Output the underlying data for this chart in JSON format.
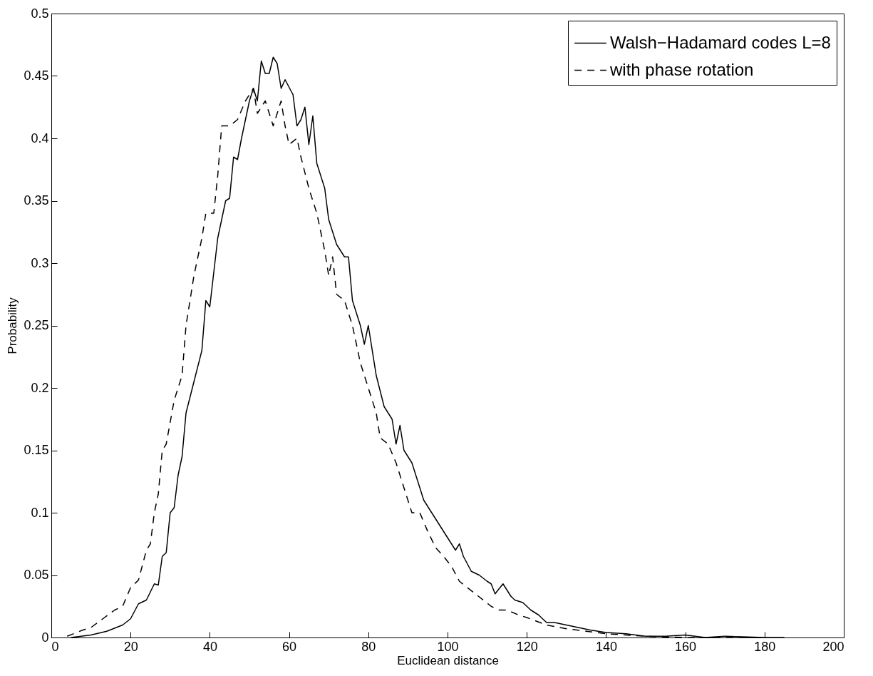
{
  "chart_data": {
    "type": "line",
    "xlabel": "Euclidean distance",
    "ylabel": "Probability",
    "xlim": [
      0,
      200
    ],
    "ylim": [
      0,
      0.5
    ],
    "xticks": [
      0,
      20,
      40,
      60,
      80,
      100,
      120,
      140,
      160,
      180,
      200
    ],
    "yticks": [
      0,
      0.05,
      0.1,
      0.15,
      0.2,
      0.25,
      0.3,
      0.35,
      0.4,
      0.45,
      0.5
    ],
    "legend": "top right",
    "series": [
      {
        "name": "Walsh−Hadamard codes L=8",
        "color": "#000000",
        "line_style": "solid",
        "x": [
          5,
          10,
          14,
          18,
          20,
          22,
          24,
          26,
          27,
          28,
          29,
          30,
          31,
          32,
          33,
          34,
          36,
          38,
          39,
          40,
          42,
          44,
          45,
          46,
          47,
          48,
          50,
          51,
          52,
          53,
          54,
          55,
          56,
          57,
          58,
          59,
          61,
          62,
          63,
          64,
          65,
          66,
          67,
          69,
          70,
          71,
          72,
          74,
          75,
          76,
          78,
          79,
          80,
          82,
          84,
          86,
          87,
          88,
          89,
          91,
          92,
          94,
          96,
          98,
          99,
          100,
          101,
          102,
          103,
          104,
          106,
          108,
          110,
          111,
          112,
          114,
          116,
          117,
          119,
          121,
          123,
          125,
          127,
          130,
          133,
          136,
          140,
          145,
          150,
          155,
          160,
          165,
          170,
          180,
          185
        ],
        "values": [
          0,
          0.002,
          0.005,
          0.01,
          0.015,
          0.027,
          0.03,
          0.043,
          0.042,
          0.065,
          0.068,
          0.1,
          0.104,
          0.13,
          0.145,
          0.18,
          0.205,
          0.23,
          0.27,
          0.265,
          0.32,
          0.35,
          0.352,
          0.385,
          0.383,
          0.4,
          0.43,
          0.44,
          0.43,
          0.462,
          0.452,
          0.452,
          0.465,
          0.46,
          0.44,
          0.447,
          0.435,
          0.41,
          0.415,
          0.425,
          0.395,
          0.418,
          0.38,
          0.36,
          0.335,
          0.325,
          0.315,
          0.305,
          0.305,
          0.27,
          0.25,
          0.235,
          0.25,
          0.21,
          0.185,
          0.175,
          0.155,
          0.17,
          0.15,
          0.14,
          0.13,
          0.11,
          0.1,
          0.09,
          0.085,
          0.08,
          0.075,
          0.07,
          0.075,
          0.065,
          0.053,
          0.05,
          0.045,
          0.043,
          0.035,
          0.043,
          0.033,
          0.03,
          0.028,
          0.022,
          0.018,
          0.012,
          0.012,
          0.01,
          0.008,
          0.006,
          0.004,
          0.003,
          0.001,
          0.001,
          0.002,
          0,
          0.001,
          0,
          0
        ]
      },
      {
        "name": "with phase rotation",
        "color": "#000000",
        "line_style": "dashed",
        "x": [
          4,
          8,
          10,
          13,
          16,
          18,
          20,
          22,
          24,
          25,
          26,
          27,
          28,
          29,
          31,
          33,
          34,
          36,
          38,
          39,
          41,
          42,
          43,
          45,
          47,
          49,
          50,
          51,
          52,
          54,
          56,
          58,
          59,
          60,
          62,
          63,
          65,
          67,
          69,
          70,
          71,
          72,
          74,
          76,
          78,
          80,
          82,
          83,
          85,
          87,
          89,
          91,
          93,
          95,
          97,
          99,
          101,
          103,
          105,
          107,
          109,
          111,
          113,
          115,
          118,
          120,
          125,
          130,
          135,
          140,
          150,
          160,
          180
        ],
        "values": [
          0.001,
          0.006,
          0.008,
          0.015,
          0.022,
          0.025,
          0.04,
          0.046,
          0.07,
          0.075,
          0.1,
          0.115,
          0.15,
          0.155,
          0.19,
          0.21,
          0.25,
          0.29,
          0.32,
          0.34,
          0.34,
          0.37,
          0.41,
          0.41,
          0.415,
          0.43,
          0.435,
          0.44,
          0.42,
          0.43,
          0.41,
          0.43,
          0.41,
          0.395,
          0.4,
          0.385,
          0.36,
          0.34,
          0.31,
          0.29,
          0.305,
          0.275,
          0.27,
          0.25,
          0.22,
          0.2,
          0.18,
          0.16,
          0.155,
          0.14,
          0.12,
          0.1,
          0.1,
          0.085,
          0.072,
          0.065,
          0.057,
          0.045,
          0.04,
          0.035,
          0.03,
          0.025,
          0.022,
          0.022,
          0.018,
          0.016,
          0.01,
          0.007,
          0.005,
          0.003,
          0.001,
          0,
          0
        ]
      }
    ]
  }
}
